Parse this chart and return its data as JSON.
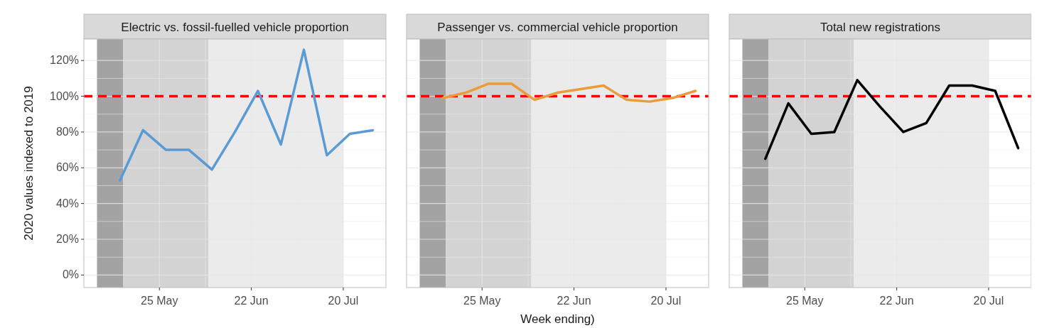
{
  "chart_data": [
    {
      "type": "line",
      "title": "Electric vs. fossil-fuelled vehicle proportion",
      "ylabel": "2020 values indexed to 2019",
      "x": [
        "2020-05-13",
        "2020-05-20",
        "2020-05-27",
        "2020-06-03",
        "2020-06-10",
        "2020-06-17",
        "2020-06-24",
        "2020-07-01",
        "2020-07-08",
        "2020-07-15",
        "2020-07-22",
        "2020-07-29"
      ],
      "series": [
        {
          "color": "#5b9bd5",
          "values": [
            53,
            81,
            70,
            70,
            59,
            80,
            103,
            73,
            126,
            67,
            79,
            81
          ]
        }
      ],
      "xlim": [
        "2020-05-02",
        "2020-08-02"
      ],
      "xticks": [
        {
          "value": "2020-05-25",
          "label": "25 May"
        },
        {
          "value": "2020-06-22",
          "label": "22 Jun"
        },
        {
          "value": "2020-07-20",
          "label": "20 Jul"
        }
      ],
      "ylim": [
        -7,
        132
      ],
      "yticks": [
        {
          "value": 0,
          "label": "0%"
        },
        {
          "value": 20,
          "label": "20%"
        },
        {
          "value": 40,
          "label": "40%"
        },
        {
          "value": 60,
          "label": "60%"
        },
        {
          "value": 80,
          "label": "80%"
        },
        {
          "value": 100,
          "label": "100%"
        },
        {
          "value": 120,
          "label": "120%"
        }
      ],
      "ref_lines": [
        {
          "axis": "y",
          "value": 100,
          "color": "#ff0000",
          "line_style": "dashed"
        }
      ],
      "bands": [
        {
          "axis": "x",
          "from": "2020-05-06",
          "to": "2020-05-14",
          "color": "#a3a3a3"
        },
        {
          "axis": "x",
          "from": "2020-05-14",
          "to": "2020-06-09",
          "color": "#d3d3d3"
        },
        {
          "axis": "x",
          "from": "2020-06-09",
          "to": "2020-07-20",
          "color": "#ebebeb"
        }
      ],
      "grid": true
    },
    {
      "type": "line",
      "title": "Passenger vs. commercial vehicle proportion",
      "xlabel": "Week ending)",
      "x": [
        "2020-05-13",
        "2020-05-20",
        "2020-05-27",
        "2020-06-03",
        "2020-06-10",
        "2020-06-17",
        "2020-06-24",
        "2020-07-01",
        "2020-07-08",
        "2020-07-15",
        "2020-07-22",
        "2020-07-29"
      ],
      "series": [
        {
          "color": "#ed9a3a",
          "values": [
            99,
            102,
            107,
            107,
            98,
            102,
            104,
            106,
            98,
            97,
            99,
            103
          ]
        }
      ],
      "xlim": [
        "2020-05-02",
        "2020-08-02"
      ],
      "xticks": [
        {
          "value": "2020-05-25",
          "label": "25 May"
        },
        {
          "value": "2020-06-22",
          "label": "22 Jun"
        },
        {
          "value": "2020-07-20",
          "label": "20 Jul"
        }
      ],
      "ylim": [
        -7,
        132
      ],
      "yticks": [
        {
          "value": 0,
          "label": null
        },
        {
          "value": 20,
          "label": null
        },
        {
          "value": 40,
          "label": null
        },
        {
          "value": 60,
          "label": null
        },
        {
          "value": 80,
          "label": null
        },
        {
          "value": 100,
          "label": null
        },
        {
          "value": 120,
          "label": null
        }
      ],
      "ref_lines": [
        {
          "axis": "y",
          "value": 100,
          "color": "#ff0000",
          "line_style": "dashed"
        }
      ],
      "bands": [
        {
          "axis": "x",
          "from": "2020-05-06",
          "to": "2020-05-14",
          "color": "#a3a3a3"
        },
        {
          "axis": "x",
          "from": "2020-05-14",
          "to": "2020-06-09",
          "color": "#d3d3d3"
        },
        {
          "axis": "x",
          "from": "2020-06-09",
          "to": "2020-07-20",
          "color": "#ebebeb"
        }
      ],
      "grid": true,
      "tick_labels": "x"
    },
    {
      "type": "line",
      "title": "Total new registrations",
      "x": [
        "2020-05-13",
        "2020-05-20",
        "2020-05-27",
        "2020-06-03",
        "2020-06-10",
        "2020-06-17",
        "2020-06-24",
        "2020-07-01",
        "2020-07-08",
        "2020-07-15",
        "2020-07-22",
        "2020-07-29"
      ],
      "series": [
        {
          "color": "#000000",
          "values": [
            65,
            96,
            79,
            80,
            109,
            94,
            80,
            85,
            106,
            106,
            103,
            71
          ]
        }
      ],
      "xlim": [
        "2020-05-02",
        "2020-08-02"
      ],
      "xticks": [
        {
          "value": "2020-05-25",
          "label": "25 May"
        },
        {
          "value": "2020-06-22",
          "label": "22 Jun"
        },
        {
          "value": "2020-07-20",
          "label": "20 Jul"
        }
      ],
      "ylim": [
        -7,
        132
      ],
      "yticks": [
        {
          "value": 0,
          "label": null
        },
        {
          "value": 20,
          "label": null
        },
        {
          "value": 40,
          "label": null
        },
        {
          "value": 60,
          "label": null
        },
        {
          "value": 80,
          "label": null
        },
        {
          "value": 100,
          "label": null
        },
        {
          "value": 120,
          "label": null
        }
      ],
      "ref_lines": [
        {
          "axis": "y",
          "value": 100,
          "color": "#ff0000",
          "line_style": "dashed"
        }
      ],
      "bands": [
        {
          "axis": "x",
          "from": "2020-05-06",
          "to": "2020-05-14",
          "color": "#a3a3a3"
        },
        {
          "axis": "x",
          "from": "2020-05-14",
          "to": "2020-06-09",
          "color": "#d3d3d3"
        },
        {
          "axis": "x",
          "from": "2020-06-09",
          "to": "2020-07-20",
          "color": "#ebebeb"
        }
      ],
      "grid": true,
      "tick_labels": "x"
    }
  ]
}
